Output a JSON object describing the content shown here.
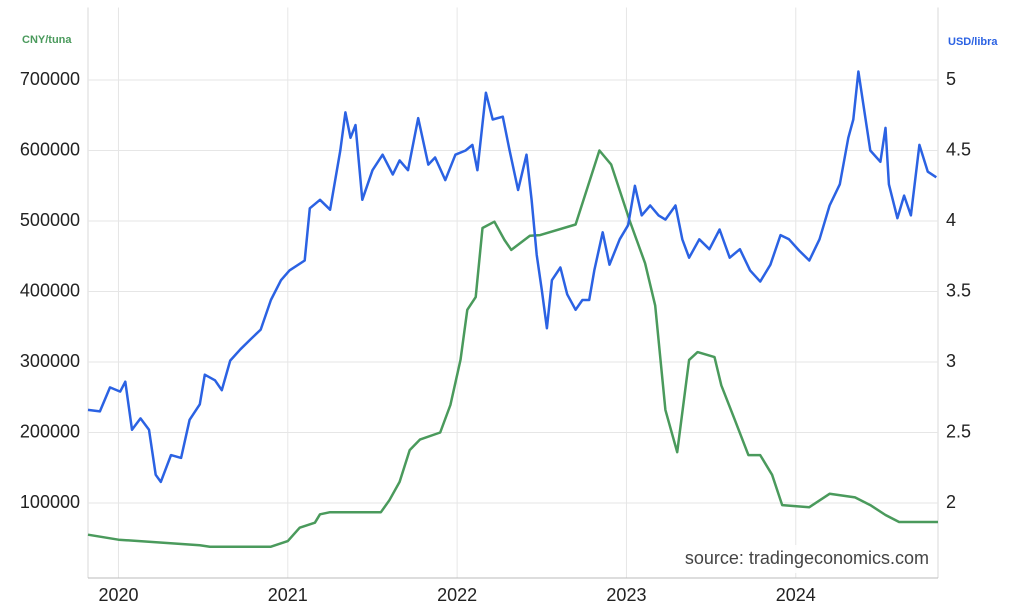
{
  "chart_data": {
    "type": "line",
    "y_label": "CNY/tuna",
    "y2_label": "USD/libra",
    "source": "source: tradingeconomics.com",
    "xlim": [
      2019.82,
      2024.84
    ],
    "xticks": [
      2020,
      2021,
      2022,
      2023,
      2024
    ],
    "ylim": [
      0,
      800000
    ],
    "yticks": [
      100000,
      200000,
      300000,
      400000,
      500000,
      600000,
      700000
    ],
    "y2lim": [
      1.5,
      5.5
    ],
    "y2ticks": [
      2,
      2.5,
      3,
      3.5,
      4,
      4.5,
      5
    ],
    "grid": true,
    "series": [
      {
        "color": "#4a9a5c",
        "axis": "y",
        "x": [
          2019.82,
          2020.0,
          2020.48,
          2020.54,
          2020.9,
          2021.0,
          2021.07,
          2021.16,
          2021.19,
          2021.25,
          2021.55,
          2021.6,
          2021.66,
          2021.72,
          2021.78,
          2021.9,
          2021.96,
          2022.02,
          2022.06,
          2022.11,
          2022.15,
          2022.22,
          2022.28,
          2022.32,
          2022.43,
          2022.49,
          2022.7,
          2022.84,
          2022.91,
          2023.02,
          2023.11,
          2023.17,
          2023.23,
          2023.3,
          2023.37,
          2023.42,
          2023.52,
          2023.56,
          2023.64,
          2023.72,
          2023.79,
          2023.86,
          2023.92,
          2024.08,
          2024.2,
          2024.35,
          2024.44,
          2024.53,
          2024.61,
          2024.84
        ],
        "values": [
          55000,
          48000,
          40000,
          38000,
          38000,
          46000,
          65000,
          72000,
          84000,
          87000,
          87000,
          104000,
          130000,
          175000,
          190000,
          200000,
          239000,
          303000,
          374000,
          392000,
          490000,
          499000,
          473000,
          459000,
          479000,
          480000,
          495000,
          600000,
          580000,
          500000,
          440000,
          380000,
          232000,
          172000,
          303000,
          314000,
          307000,
          267000,
          218000,
          168000,
          168000,
          140000,
          97000,
          94000,
          113000,
          108000,
          97000,
          83000,
          73000,
          73000
        ]
      },
      {
        "color": "#2b62e3",
        "axis": "y2",
        "x": [
          2019.82,
          2019.89,
          2019.95,
          2020.01,
          2020.04,
          2020.08,
          2020.13,
          2020.18,
          2020.22,
          2020.25,
          2020.31,
          2020.37,
          2020.42,
          2020.48,
          2020.51,
          2020.57,
          2020.61,
          2020.66,
          2020.72,
          2020.78,
          2020.84,
          2020.9,
          2020.96,
          2021.01,
          2021.1,
          2021.13,
          2021.19,
          2021.25,
          2021.31,
          2021.34,
          2021.37,
          2021.4,
          2021.44,
          2021.5,
          2021.56,
          2021.62,
          2021.66,
          2021.71,
          2021.77,
          2021.83,
          2021.87,
          2021.93,
          2021.99,
          2022.05,
          2022.09,
          2022.12,
          2022.17,
          2022.21,
          2022.27,
          2022.31,
          2022.36,
          2022.41,
          2022.44,
          2022.47,
          2022.5,
          2022.53,
          2022.56,
          2022.61,
          2022.65,
          2022.7,
          2022.74,
          2022.78,
          2022.81,
          2022.86,
          2022.9,
          2022.96,
          2023.01,
          2023.05,
          2023.09,
          2023.14,
          2023.19,
          2023.23,
          2023.29,
          2023.33,
          2023.37,
          2023.43,
          2023.49,
          2023.55,
          2023.61,
          2023.67,
          2023.73,
          2023.79,
          2023.85,
          2023.91,
          2023.96,
          2024.02,
          2024.08,
          2024.14,
          2024.2,
          2024.26,
          2024.31,
          2024.34,
          2024.37,
          2024.4,
          2024.44,
          2024.5,
          2024.53,
          2024.55,
          2024.6,
          2024.64,
          2024.68,
          2024.73,
          2024.78,
          2024.83
        ],
        "values": [
          2.66,
          2.65,
          2.82,
          2.79,
          2.86,
          2.52,
          2.6,
          2.52,
          2.2,
          2.15,
          2.34,
          2.32,
          2.59,
          2.7,
          2.91,
          2.87,
          2.8,
          3.01,
          3.09,
          3.16,
          3.23,
          3.44,
          3.58,
          3.65,
          3.72,
          4.09,
          4.15,
          4.08,
          4.5,
          4.77,
          4.59,
          4.68,
          4.15,
          4.36,
          4.47,
          4.33,
          4.43,
          4.36,
          4.73,
          4.4,
          4.45,
          4.29,
          4.47,
          4.5,
          4.54,
          4.36,
          4.91,
          4.72,
          4.74,
          4.5,
          4.22,
          4.47,
          4.15,
          3.76,
          3.51,
          3.24,
          3.58,
          3.67,
          3.48,
          3.37,
          3.44,
          3.44,
          3.65,
          3.92,
          3.69,
          3.87,
          3.97,
          4.25,
          4.04,
          4.11,
          4.04,
          4.01,
          4.11,
          3.87,
          3.74,
          3.87,
          3.8,
          3.94,
          3.74,
          3.8,
          3.65,
          3.57,
          3.69,
          3.9,
          3.87,
          3.79,
          3.72,
          3.87,
          4.11,
          4.26,
          4.59,
          4.72,
          5.06,
          4.82,
          4.5,
          4.42,
          4.66,
          4.26,
          4.02,
          4.18,
          4.04,
          4.54,
          4.35,
          4.31
        ]
      }
    ]
  }
}
